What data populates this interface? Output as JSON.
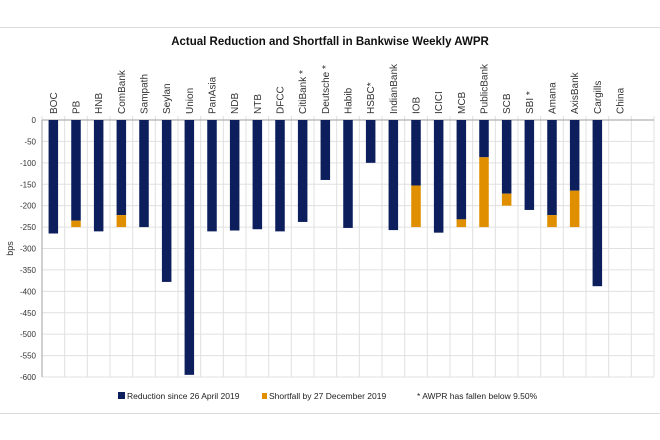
{
  "colors": {
    "reduction": "#0c1f5c",
    "shortfall": "#e08f00",
    "grid": "#e0e0e0",
    "axis": "#b0b0b0"
  },
  "chart_data": {
    "type": "bar",
    "stacked": true,
    "title": "Actual Reduction and Shortfall in Bankwise Weekly AWPR",
    "xlabel": "",
    "ylabel": "bps",
    "ylim": [
      -600,
      0
    ],
    "yticks": [
      0,
      -50,
      -100,
      -150,
      -200,
      -250,
      -300,
      -350,
      -400,
      -450,
      -500,
      -550,
      -600
    ],
    "grid": true,
    "legend_position": "bottom",
    "categories": [
      "BOC",
      "PB",
      "HNB",
      "ComBank",
      "Sampath",
      "Seylan",
      "Union",
      "PanAsia",
      "NDB",
      "NTB",
      "DFCC",
      "CitiBank *",
      "Deutsche *",
      "Habib",
      "HSBC*",
      "IndianBank",
      "IOB",
      "ICICI",
      "MCB",
      "PublicBank",
      "SCB",
      "SBI *",
      "Amana",
      "AxisBank",
      "Cargills",
      "China"
    ],
    "series": [
      {
        "name": "Reduction since 26 April 2019",
        "color": "#0c1f5c",
        "values": [
          -265,
          -235,
          -260,
          -222,
          -250,
          -378,
          -595,
          -260,
          -258,
          -255,
          -260,
          -238,
          -140,
          -252,
          -100,
          -257,
          -153,
          -263,
          -232,
          -87,
          -172,
          -210,
          -222,
          -165,
          -388,
          0
        ]
      },
      {
        "name": "Shortfall by 27 December 2019",
        "color": "#e08f00",
        "values": [
          0,
          -15,
          0,
          -28,
          0,
          0,
          0,
          0,
          0,
          0,
          0,
          0,
          0,
          0,
          0,
          0,
          -97,
          0,
          -18,
          -163,
          -28,
          0,
          -28,
          -85,
          0,
          0
        ]
      }
    ],
    "annotation": "* AWPR has fallen below 9.50%"
  },
  "legend": {
    "reduction": "Reduction since 26 April 2019",
    "shortfall": "Shortfall by 27 December 2019",
    "note": "* AWPR has fallen below 9.50%"
  }
}
